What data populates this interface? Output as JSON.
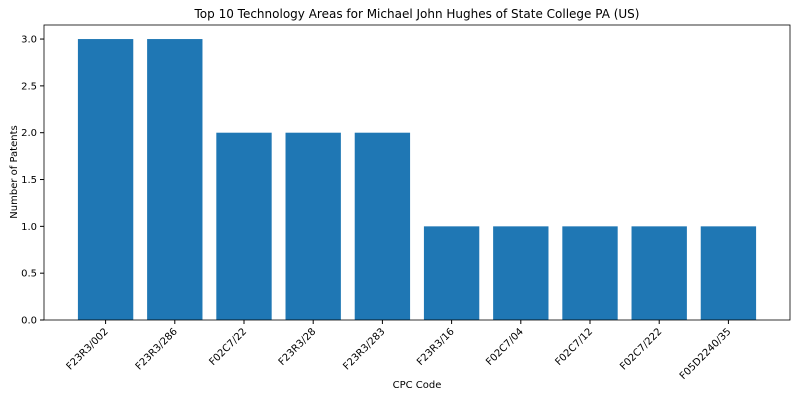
{
  "chart_data": {
    "type": "bar",
    "title": "Top 10 Technology Areas for Michael John Hughes of State College PA (US)",
    "x_label": "CPC Code",
    "y_label": "Number of Patents",
    "categories": [
      "F23R3/002",
      "F23R3/286",
      "F02C7/22",
      "F23R3/28",
      "F23R3/283",
      "F23R3/16",
      "F02C7/04",
      "F02C7/12",
      "F02C7/222",
      "F05D2240/35"
    ],
    "values": [
      3,
      3,
      2,
      2,
      2,
      1,
      1,
      1,
      1,
      1
    ],
    "color": "#1f77b4",
    "ylim": [
      0,
      3.15
    ],
    "yticks": [
      {
        "value": 0,
        "label": "0.0"
      },
      {
        "value": 0.5,
        "label": "0.5"
      },
      {
        "value": 1,
        "label": "1.0"
      },
      {
        "value": 1.5,
        "label": "1.5"
      },
      {
        "value": 2,
        "label": "2.0"
      },
      {
        "value": 2.5,
        "label": "2.5"
      },
      {
        "value": 3,
        "label": "3.0"
      }
    ],
    "grid": false
  }
}
